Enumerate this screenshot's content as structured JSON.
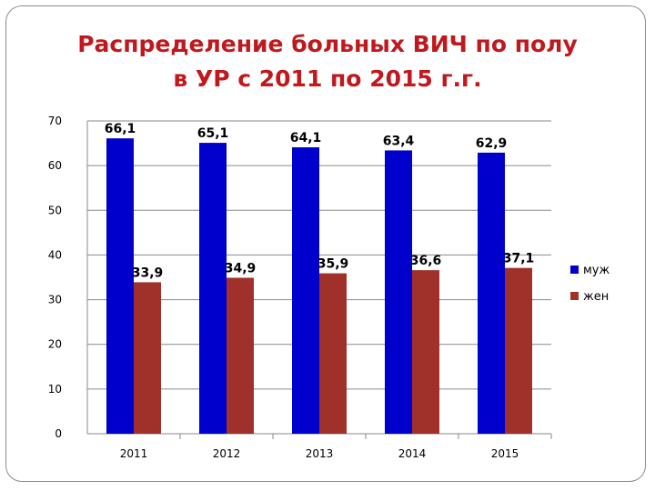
{
  "slide": {
    "title_line1": "Распределение больных ВИЧ по полу",
    "title_line2": "в УР с 2011 по 2015 г.г."
  },
  "chart_data": {
    "type": "bar",
    "categories": [
      "2011",
      "2012",
      "2013",
      "2014",
      "2015"
    ],
    "series": [
      {
        "name": "муж",
        "color": "#0000cc",
        "values": [
          66.1,
          65.1,
          64.1,
          63.4,
          62.9
        ],
        "labels": [
          "66,1",
          "65,1",
          "64,1",
          "63,4",
          "62,9"
        ]
      },
      {
        "name": "жен",
        "color": "#a0302a",
        "values": [
          33.9,
          34.9,
          35.9,
          36.6,
          37.1
        ],
        "labels": [
          "33,9",
          "34,9",
          "35,9",
          "36,6",
          "37,1"
        ]
      }
    ],
    "ylim": [
      0,
      70
    ],
    "yticks": [
      "0",
      "10",
      "20",
      "30",
      "40",
      "50",
      "60",
      "70"
    ],
    "grid": true,
    "legend": "right"
  }
}
